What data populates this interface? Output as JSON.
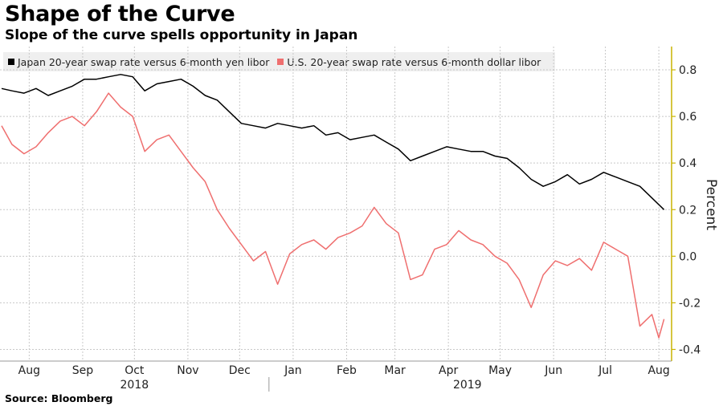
{
  "title": "Shape of the Curve",
  "subtitle": "Slope of the curve spells opportunity in Japan",
  "source": "Source: Bloomberg",
  "chart_data": {
    "type": "line",
    "ylabel": "Percent",
    "ylim": [
      -0.45,
      0.9
    ],
    "yticks": [
      0.8,
      0.6,
      0.4,
      0.2,
      0.0,
      -0.2,
      -0.4
    ],
    "ytick_labels": [
      "0.8",
      "0.6",
      "0.4",
      "0.2",
      "0.0",
      "-0.2",
      "-0.4"
    ],
    "x_range": [
      "2018-07-30",
      "2019-08-21"
    ],
    "months": [
      {
        "label": "Aug",
        "date": "2018-08-15"
      },
      {
        "label": "Sep",
        "date": "2018-09-15"
      },
      {
        "label": "Oct",
        "date": "2018-10-15"
      },
      {
        "label": "Nov",
        "date": "2018-11-15"
      },
      {
        "label": "Dec",
        "date": "2018-12-15"
      },
      {
        "label": "Jan",
        "date": "2019-01-15"
      },
      {
        "label": "Feb",
        "date": "2019-02-15"
      },
      {
        "label": "Mar",
        "date": "2019-03-15"
      },
      {
        "label": "Apr",
        "date": "2019-04-15"
      },
      {
        "label": "May",
        "date": "2019-05-15"
      },
      {
        "label": "Jun",
        "date": "2019-06-15"
      },
      {
        "label": "Jul",
        "date": "2019-07-15"
      },
      {
        "label": "Aug",
        "date": "2019-08-15"
      }
    ],
    "years": [
      {
        "label": "2018",
        "date": "2018-10-15"
      },
      {
        "label": "2019",
        "date": "2019-04-26"
      }
    ],
    "year_separator": "2019-01-01",
    "grid": true,
    "legend_position": "top-left",
    "series": [
      {
        "name": "Japan 20-year swap rate versus 6-month yen libor",
        "color": "#000000",
        "points": [
          [
            "2018-07-30",
            0.72
          ],
          [
            "2018-08-05",
            0.71
          ],
          [
            "2018-08-12",
            0.7
          ],
          [
            "2018-08-19",
            0.72
          ],
          [
            "2018-08-26",
            0.69
          ],
          [
            "2018-09-02",
            0.71
          ],
          [
            "2018-09-09",
            0.73
          ],
          [
            "2018-09-16",
            0.76
          ],
          [
            "2018-09-23",
            0.76
          ],
          [
            "2018-09-30",
            0.77
          ],
          [
            "2018-10-07",
            0.78
          ],
          [
            "2018-10-14",
            0.77
          ],
          [
            "2018-10-21",
            0.71
          ],
          [
            "2018-10-28",
            0.74
          ],
          [
            "2018-11-04",
            0.75
          ],
          [
            "2018-11-11",
            0.76
          ],
          [
            "2018-11-18",
            0.73
          ],
          [
            "2018-11-25",
            0.69
          ],
          [
            "2018-12-02",
            0.67
          ],
          [
            "2018-12-09",
            0.62
          ],
          [
            "2018-12-16",
            0.57
          ],
          [
            "2018-12-23",
            0.56
          ],
          [
            "2018-12-30",
            0.55
          ],
          [
            "2019-01-06",
            0.57
          ],
          [
            "2019-01-13",
            0.56
          ],
          [
            "2019-01-20",
            0.55
          ],
          [
            "2019-01-27",
            0.56
          ],
          [
            "2019-02-03",
            0.52
          ],
          [
            "2019-02-10",
            0.53
          ],
          [
            "2019-02-17",
            0.5
          ],
          [
            "2019-02-24",
            0.51
          ],
          [
            "2019-03-03",
            0.52
          ],
          [
            "2019-03-10",
            0.49
          ],
          [
            "2019-03-17",
            0.46
          ],
          [
            "2019-03-24",
            0.41
          ],
          [
            "2019-03-31",
            0.43
          ],
          [
            "2019-04-07",
            0.45
          ],
          [
            "2019-04-14",
            0.47
          ],
          [
            "2019-04-21",
            0.46
          ],
          [
            "2019-04-28",
            0.45
          ],
          [
            "2019-05-05",
            0.45
          ],
          [
            "2019-05-12",
            0.43
          ],
          [
            "2019-05-19",
            0.42
          ],
          [
            "2019-05-26",
            0.38
          ],
          [
            "2019-06-02",
            0.33
          ],
          [
            "2019-06-09",
            0.3
          ],
          [
            "2019-06-16",
            0.32
          ],
          [
            "2019-06-23",
            0.35
          ],
          [
            "2019-06-30",
            0.31
          ],
          [
            "2019-07-07",
            0.33
          ],
          [
            "2019-07-14",
            0.36
          ],
          [
            "2019-07-21",
            0.34
          ],
          [
            "2019-07-28",
            0.32
          ],
          [
            "2019-08-04",
            0.3
          ],
          [
            "2019-08-11",
            0.25
          ],
          [
            "2019-08-18",
            0.2
          ]
        ]
      },
      {
        "name": "U.S. 20-year swap rate versus 6-month dollar libor",
        "color": "#ef6f6f",
        "points": [
          [
            "2018-07-30",
            0.56
          ],
          [
            "2018-08-05",
            0.48
          ],
          [
            "2018-08-12",
            0.44
          ],
          [
            "2018-08-19",
            0.47
          ],
          [
            "2018-08-26",
            0.53
          ],
          [
            "2018-09-02",
            0.58
          ],
          [
            "2018-09-09",
            0.6
          ],
          [
            "2018-09-16",
            0.56
          ],
          [
            "2018-09-23",
            0.62
          ],
          [
            "2018-09-30",
            0.7
          ],
          [
            "2018-10-07",
            0.64
          ],
          [
            "2018-10-14",
            0.6
          ],
          [
            "2018-10-21",
            0.45
          ],
          [
            "2018-10-28",
            0.5
          ],
          [
            "2018-11-04",
            0.52
          ],
          [
            "2018-11-11",
            0.45
          ],
          [
            "2018-11-18",
            0.38
          ],
          [
            "2018-11-25",
            0.32
          ],
          [
            "2018-12-02",
            0.2
          ],
          [
            "2018-12-09",
            0.12
          ],
          [
            "2018-12-16",
            0.05
          ],
          [
            "2018-12-23",
            -0.02
          ],
          [
            "2018-12-30",
            0.02
          ],
          [
            "2019-01-06",
            -0.12
          ],
          [
            "2019-01-13",
            0.01
          ],
          [
            "2019-01-20",
            0.05
          ],
          [
            "2019-01-27",
            0.07
          ],
          [
            "2019-02-03",
            0.03
          ],
          [
            "2019-02-10",
            0.08
          ],
          [
            "2019-02-17",
            0.1
          ],
          [
            "2019-02-24",
            0.13
          ],
          [
            "2019-03-03",
            0.21
          ],
          [
            "2019-03-10",
            0.14
          ],
          [
            "2019-03-17",
            0.1
          ],
          [
            "2019-03-24",
            -0.1
          ],
          [
            "2019-03-31",
            -0.08
          ],
          [
            "2019-04-07",
            0.03
          ],
          [
            "2019-04-14",
            0.05
          ],
          [
            "2019-04-21",
            0.11
          ],
          [
            "2019-04-28",
            0.07
          ],
          [
            "2019-05-05",
            0.05
          ],
          [
            "2019-05-12",
            0.0
          ],
          [
            "2019-05-19",
            -0.03
          ],
          [
            "2019-05-26",
            -0.1
          ],
          [
            "2019-06-02",
            -0.22
          ],
          [
            "2019-06-09",
            -0.08
          ],
          [
            "2019-06-16",
            -0.02
          ],
          [
            "2019-06-23",
            -0.04
          ],
          [
            "2019-06-30",
            -0.01
          ],
          [
            "2019-07-07",
            -0.06
          ],
          [
            "2019-07-14",
            0.06
          ],
          [
            "2019-07-21",
            0.03
          ],
          [
            "2019-07-28",
            0.0
          ],
          [
            "2019-08-04",
            -0.3
          ],
          [
            "2019-08-11",
            -0.25
          ],
          [
            "2019-08-15",
            -0.35
          ],
          [
            "2019-08-18",
            -0.27
          ]
        ]
      }
    ]
  }
}
